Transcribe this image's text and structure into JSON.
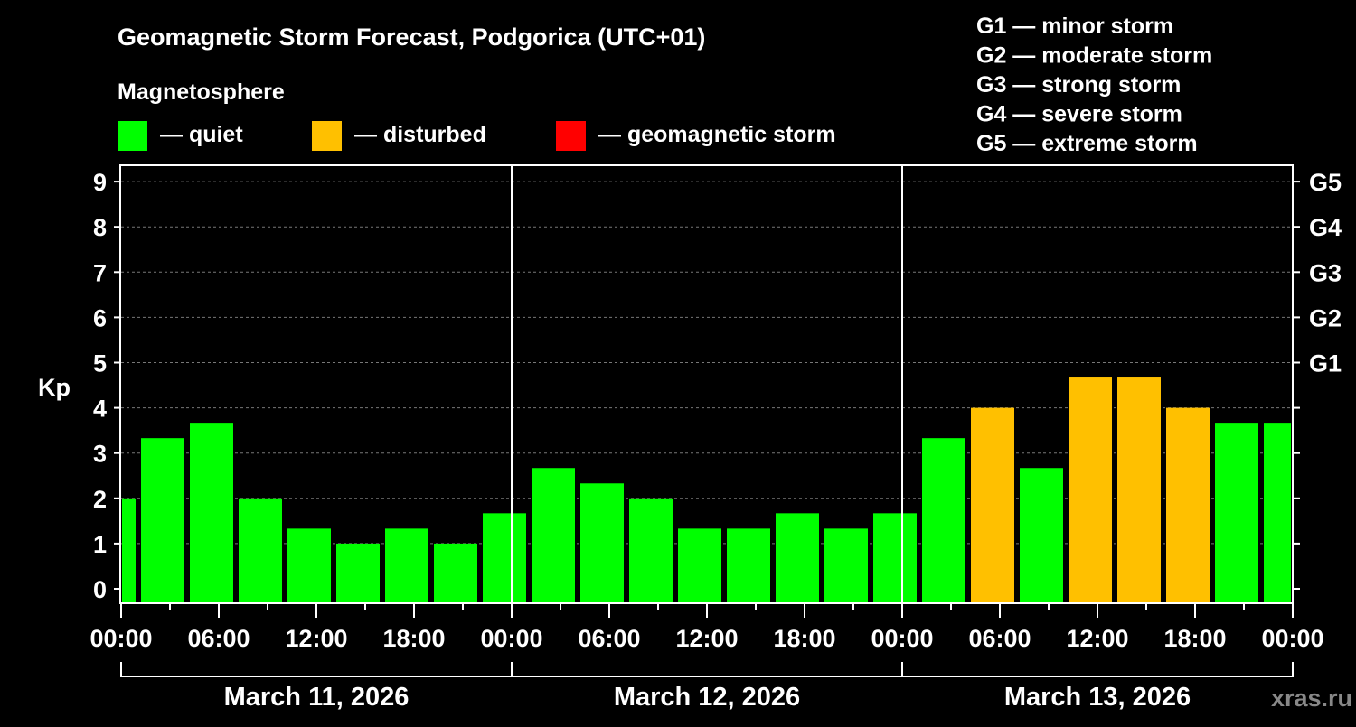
{
  "chart_data": {
    "type": "bar",
    "title": "Geomagnetic Storm Forecast, Podgorica (UTC+01)",
    "ylabel": "Kp",
    "ylim": [
      -0.33,
      9.35
    ],
    "yticks": [
      "0",
      "1",
      "2",
      "3",
      "4",
      "5",
      "6",
      "7",
      "8",
      "9"
    ],
    "right_ticks": [
      {
        "kp": 5,
        "label": "G1"
      },
      {
        "kp": 6,
        "label": "G2"
      },
      {
        "kp": 7,
        "label": "G3"
      },
      {
        "kp": 8,
        "label": "G4"
      },
      {
        "kp": 9,
        "label": "G5"
      }
    ],
    "xtick_labels": [
      "00:00",
      "06:00",
      "12:00",
      "18:00",
      "00:00",
      "06:00",
      "12:00",
      "18:00",
      "00:00",
      "06:00",
      "12:00",
      "18:00",
      "00:00"
    ],
    "days": [
      "March 11, 2026",
      "March 12, 2026",
      "March 13, 2026"
    ],
    "bar_interval_hours": 3,
    "first_bar_start_hour": -2,
    "values": [
      2.0,
      3.33,
      3.67,
      2.0,
      1.33,
      1.0,
      1.33,
      1.0,
      1.67,
      2.67,
      2.33,
      2.0,
      1.33,
      1.33,
      1.67,
      1.33,
      1.67,
      3.33,
      4.0,
      2.67,
      4.67,
      4.67,
      4.0,
      3.67,
      3.67
    ],
    "levels": [
      "quiet",
      "quiet",
      "quiet",
      "quiet",
      "quiet",
      "quiet",
      "quiet",
      "quiet",
      "quiet",
      "quiet",
      "quiet",
      "quiet",
      "quiet",
      "quiet",
      "quiet",
      "quiet",
      "quiet",
      "quiet",
      "disturbed",
      "quiet",
      "disturbed",
      "disturbed",
      "disturbed",
      "quiet",
      "quiet"
    ],
    "legend": {
      "heading": "Magnetosphere",
      "items": [
        {
          "key": "quiet",
          "label": "— quiet",
          "color": "#00ff00"
        },
        {
          "key": "disturbed",
          "label": "— disturbed",
          "color": "#ffc000"
        },
        {
          "key": "storm",
          "label": "— geomagnetic storm",
          "color": "#ff0000"
        }
      ]
    },
    "storm_scale": [
      "G1 — minor storm",
      "G2 — moderate storm",
      "G3 — strong storm",
      "G4 — severe storm",
      "G5 — extreme storm"
    ]
  },
  "watermark": "xras.ru"
}
